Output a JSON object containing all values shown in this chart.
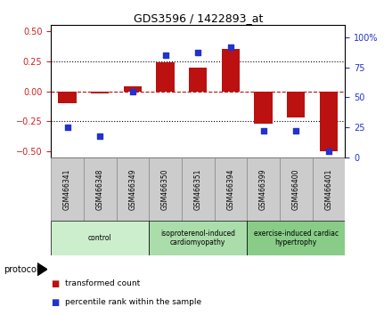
{
  "title": "GDS3596 / 1422893_at",
  "samples": [
    "GSM466341",
    "GSM466348",
    "GSM466349",
    "GSM466350",
    "GSM466351",
    "GSM466394",
    "GSM466399",
    "GSM466400",
    "GSM466401"
  ],
  "bar_values": [
    -0.1,
    -0.02,
    0.04,
    0.24,
    0.2,
    0.35,
    -0.27,
    -0.22,
    -0.5
  ],
  "scatter_values": [
    25,
    18,
    55,
    85,
    87,
    92,
    22,
    22,
    5
  ],
  "bar_color": "#bb1111",
  "scatter_color": "#2233cc",
  "ylim_left": [
    -0.55,
    0.55
  ],
  "ylim_right": [
    0,
    110
  ],
  "yticks_left": [
    -0.5,
    -0.25,
    0.0,
    0.25,
    0.5
  ],
  "yticks_right": [
    0,
    25,
    50,
    75,
    100
  ],
  "ytick_labels_right": [
    "0",
    "25",
    "50",
    "75",
    "100%"
  ],
  "hline_dotted_vals": [
    -0.25,
    0.25
  ],
  "hline_red_val": 0.0,
  "groups": [
    {
      "label": "control",
      "start": 0,
      "end": 3,
      "color": "#cceecc"
    },
    {
      "label": "isoproterenol-induced\ncardiomyopathy",
      "start": 3,
      "end": 6,
      "color": "#aaddaa"
    },
    {
      "label": "exercise-induced cardiac\nhypertrophy",
      "start": 6,
      "end": 9,
      "color": "#88cc88"
    }
  ],
  "protocol_label": "protocol",
  "legend_bar_label": "transformed count",
  "legend_scatter_label": "percentile rank within the sample",
  "tick_label_color_left": "#cc2222",
  "tick_label_color_right": "#2233cc",
  "sample_box_color": "#cccccc",
  "sample_box_edge": "#888888"
}
